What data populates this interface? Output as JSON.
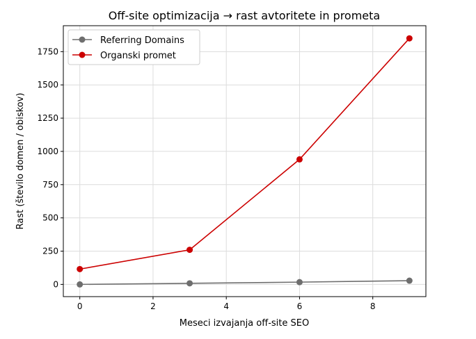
{
  "chart_data": {
    "type": "line",
    "title": "Off-site optimizacija → rast avtoritete in prometa",
    "xlabel": "Meseci izvajanja off-site SEO",
    "ylabel": "Rast (število domen / obiskov)",
    "xlim": [
      -0.45,
      9.45
    ],
    "ylim": [
      -92,
      1945
    ],
    "xticks": [
      0,
      2,
      4,
      6,
      8
    ],
    "yticks": [
      0,
      250,
      500,
      750,
      1000,
      1250,
      1500,
      1750
    ],
    "grid": true,
    "legend": "top-left",
    "x": [
      0,
      3,
      6,
      9
    ],
    "series": [
      {
        "name": "Referring Domains",
        "color": "#6e6e6e",
        "values": [
          0,
          8,
          17,
          28
        ]
      },
      {
        "name": "Organski promet",
        "color": "#cc0000",
        "values": [
          115,
          260,
          940,
          1850
        ]
      }
    ]
  }
}
